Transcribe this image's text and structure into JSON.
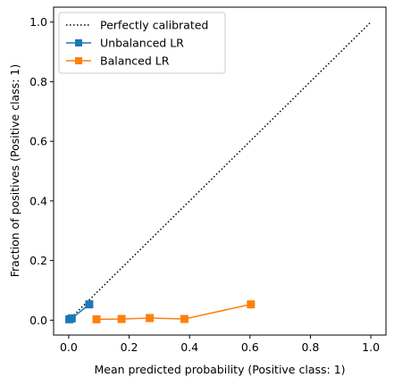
{
  "chart_data": {
    "type": "line",
    "title": "",
    "xlabel": "Mean predicted probability (Positive class: 1)",
    "ylabel": "Fraction of positives (Positive class: 1)",
    "xlim": [
      -0.05,
      1.05
    ],
    "ylim": [
      -0.05,
      1.05
    ],
    "xticks": [
      0.0,
      0.2,
      0.4,
      0.6,
      0.8,
      1.0
    ],
    "yticks": [
      0.0,
      0.2,
      0.4,
      0.6,
      0.8,
      1.0
    ],
    "xtick_labels": [
      "0.0",
      "0.2",
      "0.4",
      "0.6",
      "0.8",
      "1.0"
    ],
    "ytick_labels": [
      "0.0",
      "0.2",
      "0.4",
      "0.6",
      "0.8",
      "1.0"
    ],
    "grid": false,
    "legend_position": "top-left",
    "series": [
      {
        "name": "Perfectly calibrated",
        "style": "dotted",
        "marker": "none",
        "color": "#000000",
        "x": [
          0.0,
          1.0
        ],
        "y": [
          0.0,
          1.0
        ]
      },
      {
        "name": "Unbalanced LR",
        "style": "solid",
        "marker": "square",
        "color": "#1f77b4",
        "x": [
          0.002,
          0.01,
          0.068
        ],
        "y": [
          0.003,
          0.006,
          0.053
        ]
      },
      {
        "name": "Balanced LR",
        "style": "solid",
        "marker": "square",
        "color": "#ff7f0e",
        "x": [
          0.092,
          0.175,
          0.268,
          0.383,
          0.603
        ],
        "y": [
          0.003,
          0.004,
          0.007,
          0.004,
          0.053
        ]
      }
    ]
  }
}
